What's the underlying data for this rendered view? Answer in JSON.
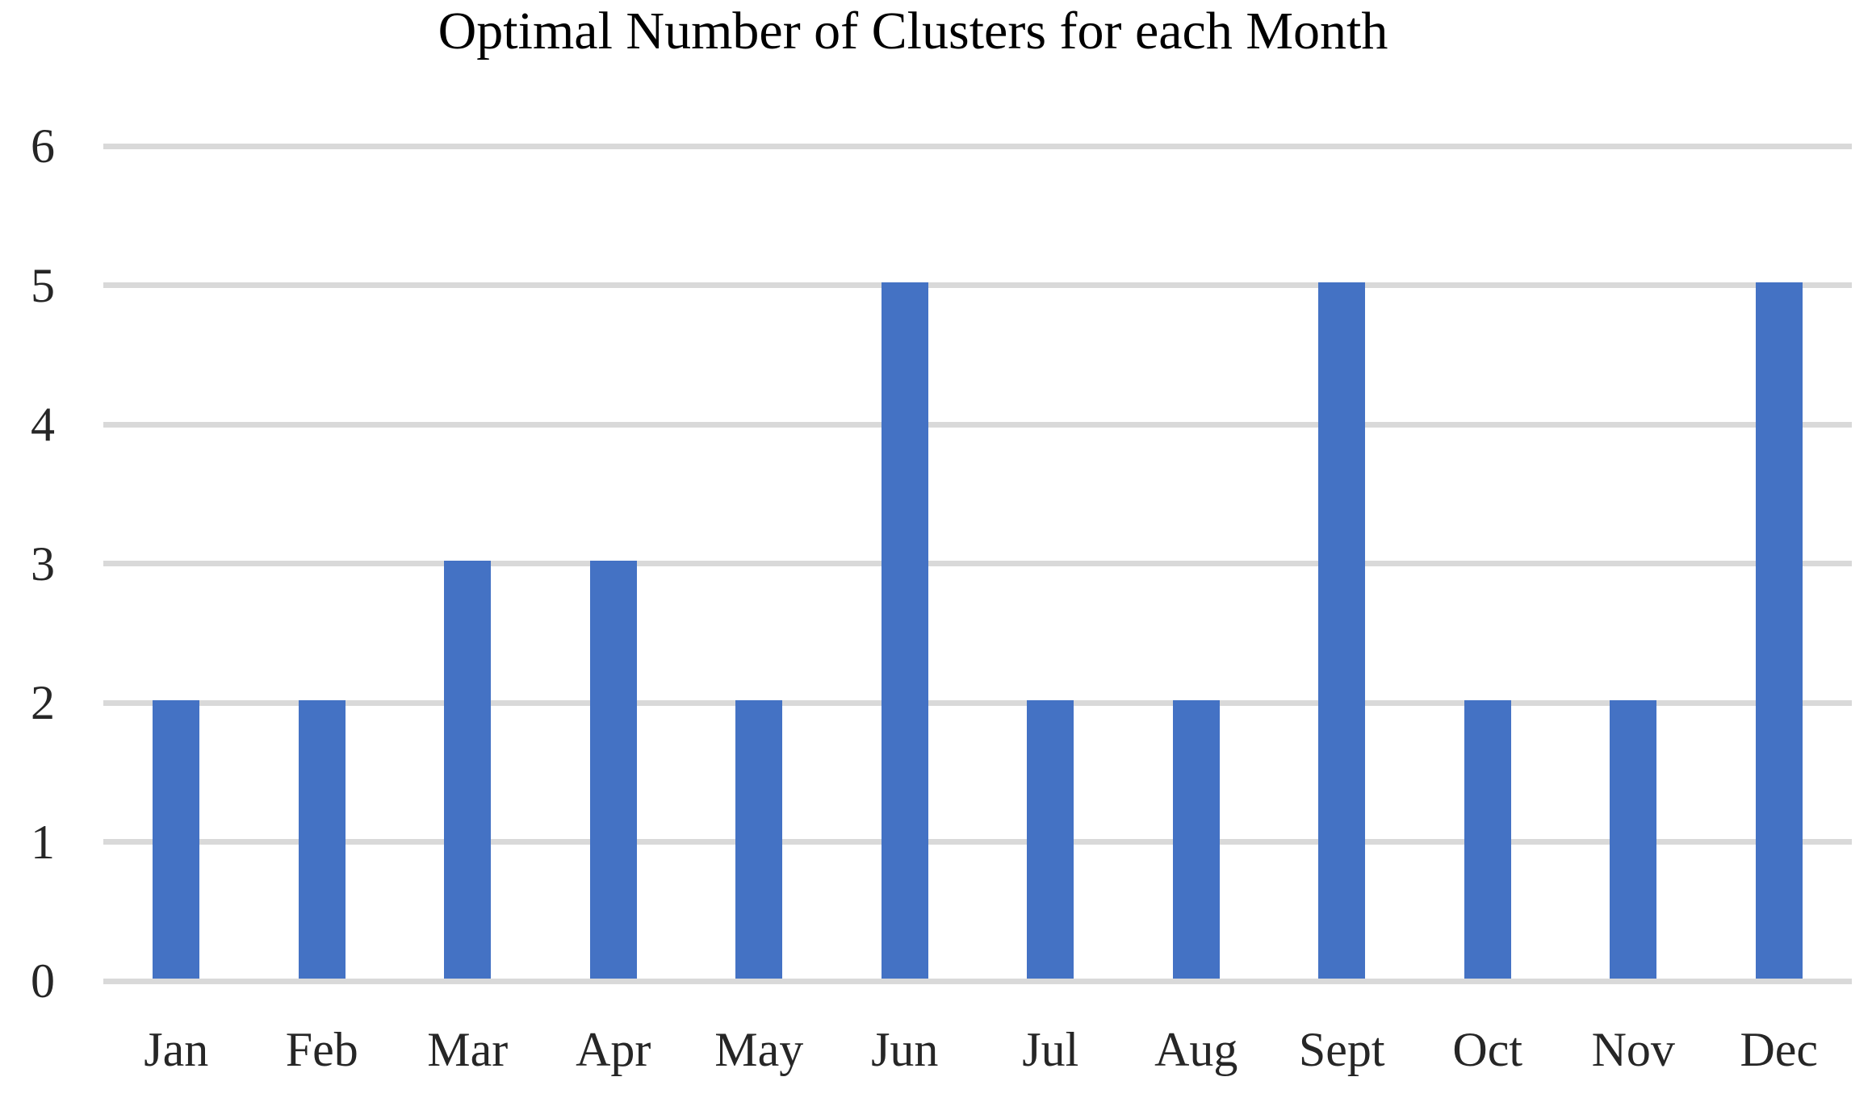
{
  "chart_data": {
    "type": "bar",
    "title": "Optimal Number of Clusters for each Month",
    "categories": [
      "Jan",
      "Feb",
      "Mar",
      "Apr",
      "May",
      "Jun",
      "Jul",
      "Aug",
      "Sept",
      "Oct",
      "Nov",
      "Dec"
    ],
    "values": [
      2,
      2,
      3,
      3,
      2,
      5,
      2,
      2,
      5,
      2,
      2,
      5
    ],
    "xlabel": "",
    "ylabel": "",
    "y_ticks": [
      0,
      1,
      2,
      3,
      4,
      5,
      6
    ],
    "ylim": [
      0,
      6
    ],
    "grid": true,
    "legend": "none",
    "bar_color": "#4472C4",
    "gridline_color": "#D9D9D9",
    "axis_line_color": "#D9D9D9",
    "text_color": "#262626",
    "background_color": "#FFFFFF"
  }
}
